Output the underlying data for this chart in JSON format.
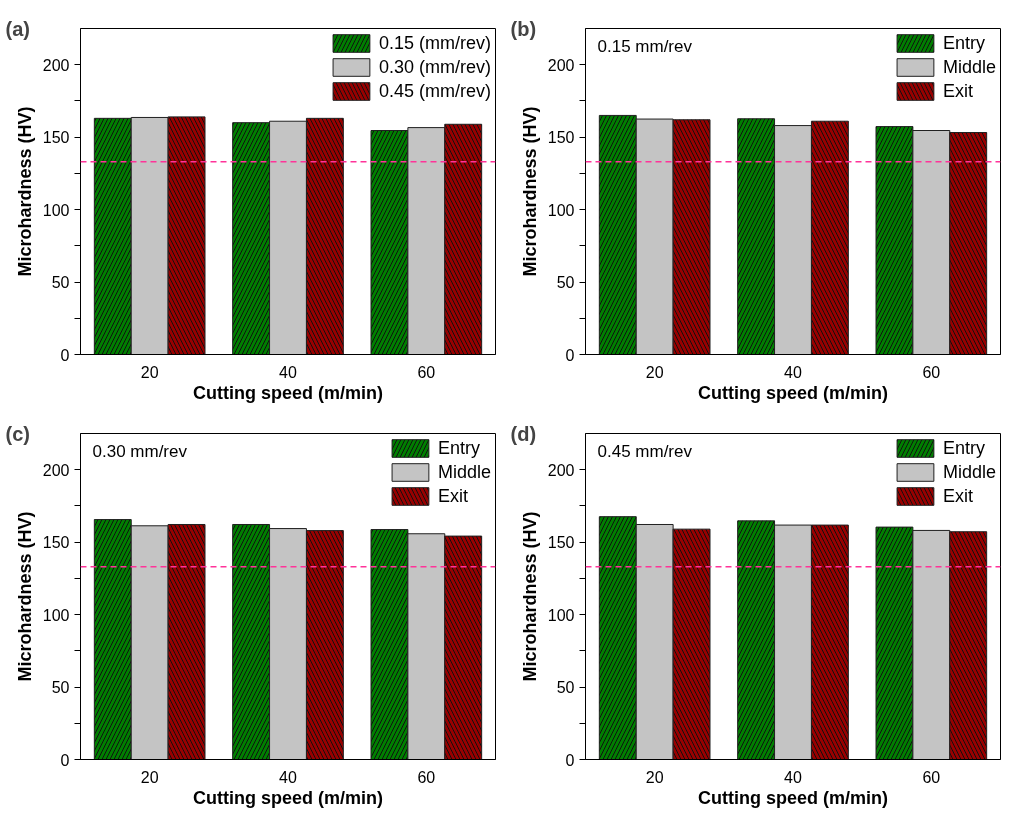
{
  "chart_data": [
    {
      "type": "bar",
      "categories": [
        "20",
        "40",
        "60"
      ],
      "xlabel": "Cutting speed (m/min)",
      "ylabel": "Microhardness (HV)",
      "ylim": [
        0,
        225
      ],
      "yticks": [
        0,
        {
          "value": 25,
          "label": null
        },
        50,
        {
          "value": 75,
          "label": null
        },
        100,
        {
          "value": 125,
          "label": null
        },
        150,
        {
          "value": 175,
          "label": null
        },
        200
      ],
      "legend": "top right",
      "grid": false,
      "annotations": [
        "(a)"
      ],
      "ref_lines": [
        {
          "axis": "y",
          "value": 133,
          "color": "#ff3399",
          "line_style": "dashed"
        }
      ],
      "series": [
        {
          "name": "0.15 (mm/rev)",
          "color": "#007f00",
          "values": [
            163,
            160,
            154.6
          ]
        },
        {
          "name": "0.30 (mm/rev)",
          "color": "#c4c4c4",
          "values": [
            163.6,
            161,
            156.6
          ]
        },
        {
          "name": "0.45 (mm/rev)",
          "color": "#990000",
          "values": [
            164,
            163,
            158.9
          ]
        }
      ]
    },
    {
      "type": "bar",
      "categories": [
        "20",
        "40",
        "60"
      ],
      "xlabel": "Cutting speed (m/min)",
      "ylabel": "Microhardness (HV)",
      "ylim": [
        0,
        225
      ],
      "yticks": [
        0,
        {
          "value": 25,
          "label": null
        },
        50,
        {
          "value": 75,
          "label": null
        },
        100,
        {
          "value": 125,
          "label": null
        },
        150,
        {
          "value": 175,
          "label": null
        },
        200
      ],
      "legend": "top right",
      "grid": false,
      "annotations": [
        "(b)",
        "0.15 mm/rev"
      ],
      "ref_lines": [
        {
          "axis": "y",
          "value": 133,
          "color": "#ff3399",
          "line_style": "dashed"
        }
      ],
      "series": [
        {
          "name": "Entry",
          "color": "#007f00",
          "values": [
            165,
            162.7,
            157.3
          ]
        },
        {
          "name": "Middle",
          "color": "#c4c4c4",
          "values": [
            162.5,
            158,
            154.6
          ]
        },
        {
          "name": "Exit",
          "color": "#990000",
          "values": [
            162,
            161,
            153.2
          ]
        }
      ]
    },
    {
      "type": "bar",
      "categories": [
        "20",
        "40",
        "60"
      ],
      "xlabel": "Cutting speed (m/min)",
      "ylabel": "Microhardness (HV)",
      "ylim": [
        0,
        225
      ],
      "yticks": [
        0,
        {
          "value": 25,
          "label": null
        },
        50,
        {
          "value": 75,
          "label": null
        },
        100,
        {
          "value": 125,
          "label": null
        },
        150,
        {
          "value": 175,
          "label": null
        },
        200
      ],
      "legend": "top right",
      "grid": false,
      "annotations": [
        "(c)",
        "0.30 mm/rev"
      ],
      "ref_lines": [
        {
          "axis": "y",
          "value": 133,
          "color": "#ff3399",
          "line_style": "dashed"
        }
      ],
      "series": [
        {
          "name": "Entry",
          "color": "#007f00",
          "values": [
            165.6,
            162.2,
            158.7
          ]
        },
        {
          "name": "Middle",
          "color": "#c4c4c4",
          "values": [
            161.3,
            159.4,
            155.8
          ]
        },
        {
          "name": "Exit",
          "color": "#990000",
          "values": [
            162.2,
            158,
            154.2
          ]
        }
      ]
    },
    {
      "type": "bar",
      "categories": [
        "20",
        "40",
        "60"
      ],
      "xlabel": "Cutting speed (m/min)",
      "ylabel": "Microhardness (HV)",
      "ylim": [
        0,
        225
      ],
      "yticks": [
        0,
        {
          "value": 25,
          "label": null
        },
        50,
        {
          "value": 75,
          "label": null
        },
        100,
        {
          "value": 125,
          "label": null
        },
        150,
        {
          "value": 175,
          "label": null
        },
        200
      ],
      "legend": "top right",
      "grid": false,
      "annotations": [
        "(d)",
        "0.45 mm/rev"
      ],
      "ref_lines": [
        {
          "axis": "y",
          "value": 133,
          "color": "#ff3399",
          "line_style": "dashed"
        }
      ],
      "series": [
        {
          "name": "Entry",
          "color": "#007f00",
          "values": [
            167.6,
            164.7,
            160.4
          ]
        },
        {
          "name": "Middle",
          "color": "#c4c4c4",
          "values": [
            162.2,
            161.8,
            158.1
          ]
        },
        {
          "name": "Exit",
          "color": "#990000",
          "values": [
            159,
            161.8,
            157.2
          ]
        }
      ]
    }
  ]
}
